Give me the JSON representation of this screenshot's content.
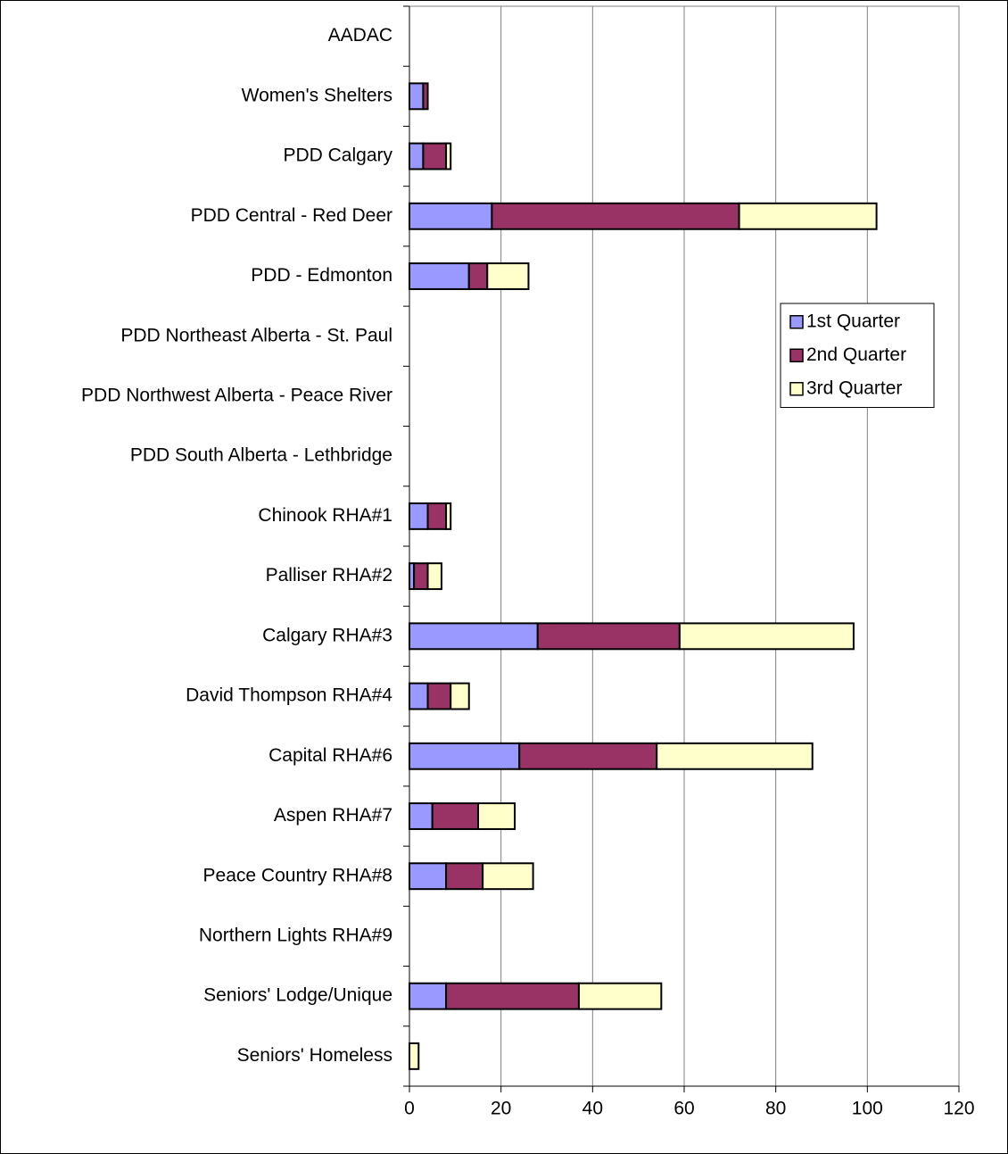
{
  "chart_data": {
    "type": "stacked_barh",
    "categories": [
      "AADAC",
      "Women's Shelters",
      "PDD Calgary",
      "PDD Central - Red Deer",
      "PDD - Edmonton",
      "PDD Northeast Alberta - St. Paul",
      "PDD Northwest Alberta - Peace River",
      "PDD South Alberta - Lethbridge",
      "Chinook RHA#1",
      "Palliser RHA#2",
      "Calgary RHA#3",
      "David Thompson RHA#4",
      "Capital RHA#6",
      "Aspen RHA#7",
      "Peace Country RHA#8",
      "Northern Lights RHA#9",
      "Seniors' Lodge/Unique",
      "Seniors' Homeless"
    ],
    "series": [
      {
        "name": "1st Quarter",
        "color": "#9999ff",
        "values": [
          0,
          3,
          3,
          18,
          13,
          0,
          0,
          0,
          4,
          1,
          28,
          4,
          24,
          5,
          8,
          0,
          8,
          0
        ]
      },
      {
        "name": "2nd Quarter",
        "color": "#993366",
        "values": [
          0,
          1,
          5,
          54,
          4,
          0,
          0,
          0,
          4,
          3,
          31,
          5,
          30,
          10,
          8,
          0,
          29,
          0
        ]
      },
      {
        "name": "3rd Quarter",
        "color": "#ffffcc",
        "values": [
          0,
          0,
          1,
          30,
          9,
          0,
          0,
          0,
          1,
          3,
          38,
          4,
          34,
          8,
          11,
          0,
          18,
          2
        ]
      }
    ],
    "xlim": [
      0,
      120
    ],
    "xticks": [
      0,
      20,
      40,
      60,
      80,
      100,
      120
    ],
    "grid": true,
    "legend": "right"
  }
}
